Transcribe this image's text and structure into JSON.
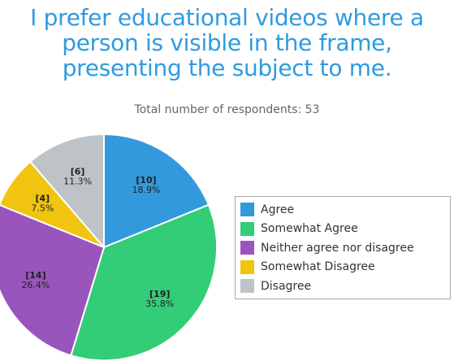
{
  "chart_data": {
    "type": "pie",
    "title_lines": [
      "I prefer educational videos where a",
      "person is visible in the frame,",
      "presenting the subject to me."
    ],
    "subtitle": "Total number of respondents: 53",
    "slices": [
      {
        "label": "Agree",
        "value": 10,
        "count_label": "[10]",
        "percent_label": "18.9%",
        "color": "#3399dd"
      },
      {
        "label": "Somewhat Agree",
        "value": 19,
        "count_label": "[19]",
        "percent_label": "35.8%",
        "color": "#33cc77"
      },
      {
        "label": "Neither agree nor disagree",
        "value": 14,
        "count_label": "[14]",
        "percent_label": "26.4%",
        "color": "#9955bb"
      },
      {
        "label": "Somewhat Disagree",
        "value": 4,
        "count_label": "[4]",
        "percent_label": "7.5%",
        "color": "#f1c40f"
      },
      {
        "label": "Disagree",
        "value": 6,
        "count_label": "[6]",
        "percent_label": "11.3%",
        "color": "#bdc3c7"
      }
    ],
    "legend_position": "right"
  }
}
